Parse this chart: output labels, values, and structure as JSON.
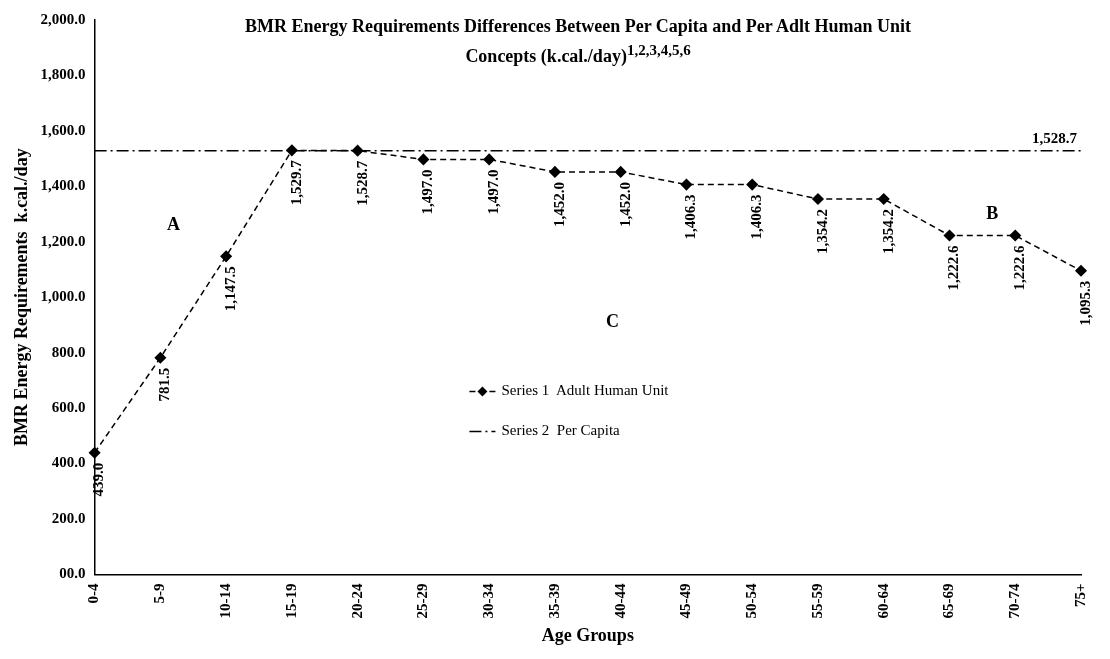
{
  "chart_data": {
    "type": "line",
    "title": "BMR Energy Requirements Differences Between Per Capita and Per Adlt Human Unit Concepts (k.cal./day)$^{1,2,3,4,5,6}$",
    "xlabel": "Age Groups",
    "ylabel": "BMR Energy Requirements  k.cal./day",
    "categories": [
      "0-4",
      "5-9",
      "10-14",
      "15-19",
      "20-24",
      "25-29",
      "30-34",
      "35-39",
      "40-44",
      "45-49",
      "50-54",
      "55-59",
      "60-64",
      "65-69",
      "70-74",
      "75+"
    ],
    "series": [
      {
        "name": "Series 1  Adult Human Unit",
        "color": "#000000",
        "marker": "diamond",
        "line_style": "dashed",
        "values": [
          439.0,
          781.5,
          1147.5,
          1529.7,
          1528.7,
          1497.0,
          1497.0,
          1452.0,
          1452.0,
          1406.3,
          1406.3,
          1354.2,
          1354.2,
          1222.6,
          1222.6,
          1095.3
        ],
        "value_labels": [
          "439.0",
          "781.5",
          "1,147.5",
          "1,529.7",
          "1,528.7",
          "1,497.0",
          "1,497.0",
          "1,452.0",
          "1,452.0",
          "1,406.3",
          "1,406.3",
          "1,354.2",
          "1,354.2",
          "1,222.6",
          "1,222.6",
          "1,095.3"
        ]
      },
      {
        "name": "Series 2  Per Capita",
        "color": "#000000",
        "marker": "none",
        "line_style": "dashdot",
        "values": [
          1528.7,
          1528.7,
          1528.7,
          1528.7,
          1528.7,
          1528.7,
          1528.7,
          1528.7,
          1528.7,
          1528.7,
          1528.7,
          1528.7,
          1528.7,
          1528.7,
          1528.7,
          1528.7
        ],
        "value_labels": [
          null,
          null,
          null,
          null,
          null,
          null,
          null,
          null,
          null,
          null,
          null,
          null,
          null,
          null,
          null,
          "1,528.7"
        ]
      }
    ],
    "ylim": [
      0,
      2000
    ],
    "yticks": [
      {
        "value": 0,
        "label": "00.0"
      },
      {
        "value": 200,
        "label": "200.0"
      },
      {
        "value": 400,
        "label": "400.0"
      },
      {
        "value": 600,
        "label": "600.0"
      },
      {
        "value": 800,
        "label": "800.0"
      },
      {
        "value": 1000,
        "label": "1,000.0"
      },
      {
        "value": 1200,
        "label": "1,200.0"
      },
      {
        "value": 1400,
        "label": "1,400.0"
      },
      {
        "value": 1600,
        "label": "1,600.0"
      },
      {
        "value": 1800,
        "label": "1,800.0"
      },
      {
        "value": 2000,
        "label": "2,000.0"
      }
    ],
    "annotations": [
      "A",
      "B",
      "C"
    ],
    "grid": false,
    "legend": "center"
  }
}
